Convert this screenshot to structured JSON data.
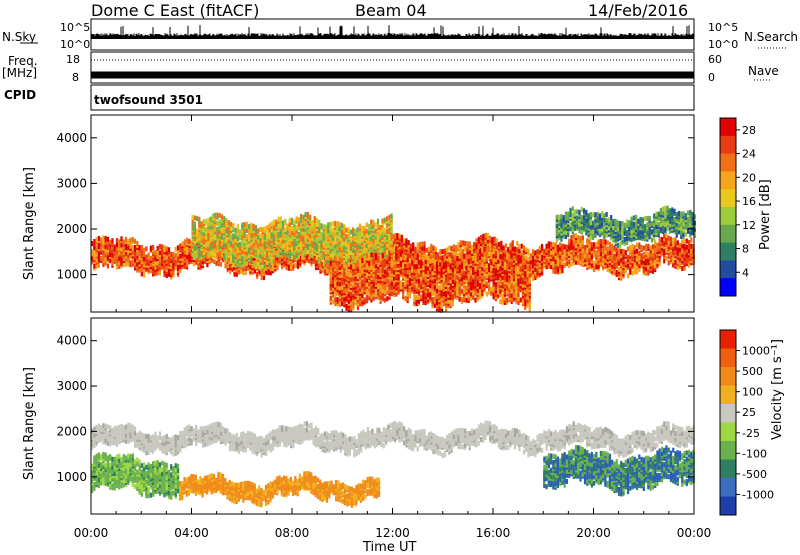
{
  "header": {
    "station": "Dome C East (fitACF)",
    "beam": "Beam 04",
    "date": "14/Feb/2016"
  },
  "strip": {
    "nsky_label": "N.Sky",
    "nsky_top": "10^5",
    "nsky_bottom": "10^0",
    "nsearch_label": "N.Search",
    "nsearch_top": "10^5",
    "nsearch_bottom": "10^0",
    "freq_label": "Freq.",
    "freq_unit": "[MHz]",
    "freq_top": "18",
    "freq_bottom": "8",
    "nave_label": "Nave",
    "nave_top": "60",
    "nave_bottom": "0",
    "cpid_label": "CPID",
    "cpid_value": "twofsound 3501"
  },
  "chart_data": [
    {
      "type": "heatmap",
      "name": "power",
      "ylabel": "Slant Range [km]",
      "y_ticks": [
        "1000",
        "2000",
        "3000",
        "4000"
      ],
      "ylim": [
        180,
        4500
      ],
      "xlim": [
        0,
        24
      ],
      "x_ticks": [
        "00:00",
        "04:00",
        "08:00",
        "12:00",
        "16:00",
        "20:00",
        "00:00"
      ],
      "colorbar": {
        "label": "Power [dB]",
        "ticks": [
          "4",
          "8",
          "12",
          "16",
          "20",
          "24",
          "28"
        ],
        "range": [
          0,
          30
        ],
        "colors": [
          "#0000ff",
          "#234ea0",
          "#2f7f63",
          "#6aa84f",
          "#9ccc3c",
          "#e8c81e",
          "#f5a51a",
          "#f07018",
          "#e83c14",
          "#e00000"
        ]
      },
      "bands": [
        {
          "from_h": 0,
          "to_h": 24,
          "center_km": 1450,
          "half_km": 300,
          "level": "strong"
        },
        {
          "from_h": 4,
          "to_h": 12,
          "center_km": 1800,
          "half_km": 450,
          "level": "medium"
        },
        {
          "from_h": 9.5,
          "to_h": 17.5,
          "center_km": 950,
          "half_km": 500,
          "level": "strong"
        },
        {
          "from_h": 18.5,
          "to_h": 24,
          "center_km": 2100,
          "half_km": 250,
          "level": "weak"
        }
      ]
    },
    {
      "type": "heatmap",
      "name": "velocity",
      "ylabel": "Slant Range [km]",
      "y_ticks": [
        "1000",
        "2000",
        "3000",
        "4000"
      ],
      "ylim": [
        180,
        4500
      ],
      "xlim": [
        0,
        24
      ],
      "x_ticks": [
        "00:00",
        "04:00",
        "08:00",
        "12:00",
        "16:00",
        "20:00",
        "00:00"
      ],
      "xlabel": "Time UT",
      "colorbar": {
        "label": "Velocity [m s⁻¹]",
        "ticks": [
          "1000",
          "500",
          "100",
          "25",
          "-25",
          "-100",
          "-500",
          "-1000"
        ],
        "colors": [
          "#1f3fa8",
          "#3a6ec0",
          "#2f7f63",
          "#6ab04c",
          "#9ed843",
          "#c8c8c0",
          "#f0b020",
          "#f08a18",
          "#f06010",
          "#e82000"
        ]
      },
      "bands": [
        {
          "from_h": 0,
          "to_h": 24,
          "center_km": 1900,
          "half_km": 200,
          "level": "gray"
        },
        {
          "from_h": 3.5,
          "to_h": 11.5,
          "center_km": 800,
          "half_km": 200,
          "level": "orange"
        },
        {
          "from_h": 0,
          "to_h": 3.5,
          "center_km": 1100,
          "half_km": 350,
          "level": "green"
        },
        {
          "from_h": 18,
          "to_h": 24,
          "center_km": 1200,
          "half_km": 350,
          "level": "blue-green"
        }
      ]
    }
  ]
}
